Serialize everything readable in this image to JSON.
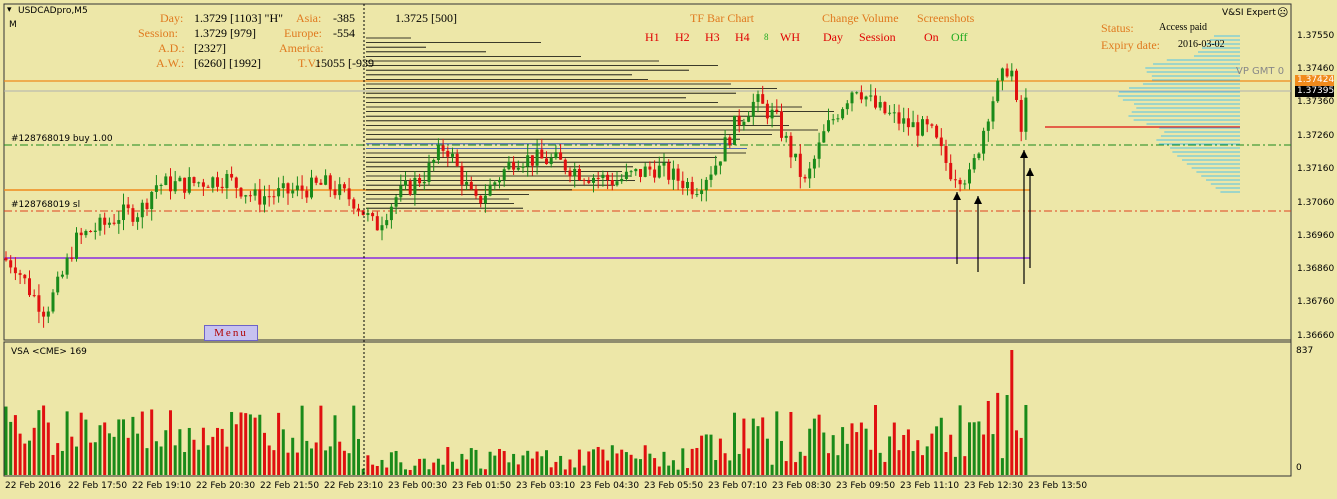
{
  "chart_title": "USDCADpro,M5",
  "chart_mode": "M",
  "expert": {
    "name": "V&SI Expert",
    "status_label": "Status:",
    "status_value": "Access paid",
    "expiry_label": "Expiry date:",
    "expiry_value": "2016-03-02"
  },
  "stats": {
    "day_label": "Day:",
    "day_value": "1.3729  [1103]   \"H\"",
    "session_label": "Session:",
    "session_value": "1.3729  [979]",
    "ad_label": "A.D.:",
    "ad_value": "[2327]",
    "aw_label": "A.W.:",
    "aw_value": "[6260]   [1992]",
    "asia_label": "Asia:",
    "asia_value": "-385",
    "europe_label": "Europe:",
    "europe_value": "-554",
    "america_label": "America:",
    "tv_label": "T.V.:",
    "tv_value": "15055 [-939",
    "price_count": "1.3725 [500]"
  },
  "toolbar": {
    "tf_title": "TF Bar Chart",
    "tf_buttons": [
      "H1",
      "H2",
      "H3",
      "H4"
    ],
    "tf_small": "8",
    "tf_wh": "WH",
    "change_title": "Change Volume",
    "change_day": "Day",
    "change_session": "Session",
    "screens_title": "Screenshots",
    "screens_on": "On",
    "screens_off": "Off"
  },
  "vp_label": "VP GMT 0",
  "orders": {
    "buy": "#128768019 buy 1.00",
    "sl": "#128768019 sl"
  },
  "menu_label": "Menu",
  "price_axis": [
    "1.37550",
    "1.37460",
    "1.37360",
    "1.37260",
    "1.37160",
    "1.37060",
    "1.36960",
    "1.36860",
    "1.36760",
    "1.36660"
  ],
  "price_boxes": {
    "orange": "1.37424",
    "black": "1.37395"
  },
  "volume": {
    "label": "VSA <CME> 169",
    "max": "837",
    "min": "0"
  },
  "time_axis": [
    "22 Feb 2016",
    "22 Feb 17:50",
    "22 Feb 19:10",
    "22 Feb 20:30",
    "22 Feb 21:50",
    "22 Feb 23:10",
    "23 Feb 00:30",
    "23 Feb 01:50",
    "23 Feb 03:10",
    "23 Feb 04:30",
    "23 Feb 05:50",
    "23 Feb 07:10",
    "23 Feb 08:30",
    "23 Feb 09:50",
    "23 Feb 11:10",
    "23 Feb 12:30",
    "23 Feb 13:50"
  ],
  "colors": {
    "bg": "#ede7a8",
    "bull": "#1a8a1a",
    "bear": "#e01010",
    "orange": "#f08a1c",
    "purple": "#8a2be2",
    "vp": "#4fc3e8"
  }
}
